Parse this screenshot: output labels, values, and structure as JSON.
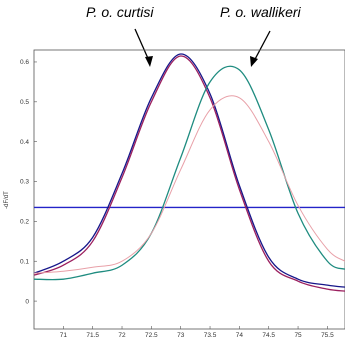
{
  "chart_data": {
    "type": "line",
    "annotations": [
      {
        "text": "P. o. curtisi"
      },
      {
        "text": "P. o. wallikeri"
      }
    ],
    "ylabel": "-dF/dT",
    "xlim": [
      70.5,
      75.8
    ],
    "ylim": [
      -0.07,
      0.63
    ],
    "x_ticks": [
      71,
      71.5,
      72,
      72.5,
      73,
      73.5,
      74,
      74.5,
      75,
      75.5
    ],
    "x_tick_labels": [
      "71",
      "71.5",
      "72",
      "72.5",
      "73",
      "73.5",
      "74",
      "74.5",
      "75",
      "75.5"
    ],
    "y_ticks": [
      0,
      0.1,
      0.2,
      0.3,
      0.4,
      0.5,
      0.6
    ],
    "y_tick_labels": [
      "0",
      "0.1",
      "0.2",
      "0.3",
      "0.4",
      "0.5",
      "0.6"
    ],
    "threshold": {
      "y": 0.235,
      "color": "#2323c8"
    },
    "series": [
      {
        "color": "#16168a",
        "x": [
          70.5,
          71.0,
          71.5,
          72.0,
          72.5,
          73.0,
          73.5,
          74.0,
          74.5,
          75.0,
          75.5,
          75.8
        ],
        "y": [
          0.07,
          0.1,
          0.16,
          0.32,
          0.51,
          0.62,
          0.52,
          0.29,
          0.11,
          0.055,
          0.04,
          0.035
        ]
      },
      {
        "color": "#9b1f5e",
        "x": [
          70.5,
          71.0,
          71.5,
          72.0,
          72.5,
          73.0,
          73.5,
          74.0,
          74.5,
          75.0,
          75.5,
          75.8
        ],
        "y": [
          0.065,
          0.09,
          0.15,
          0.31,
          0.5,
          0.615,
          0.51,
          0.28,
          0.1,
          0.05,
          0.03,
          0.025
        ]
      },
      {
        "color": "#1f8c80",
        "x": [
          70.5,
          71.0,
          71.5,
          72.0,
          72.5,
          73.0,
          73.5,
          74.0,
          74.5,
          75.0,
          75.5,
          75.8
        ],
        "y": [
          0.055,
          0.055,
          0.07,
          0.09,
          0.17,
          0.36,
          0.55,
          0.58,
          0.43,
          0.22,
          0.1,
          0.08
        ]
      },
      {
        "color": "#e8a0a8",
        "x": [
          70.5,
          71.0,
          71.5,
          72.0,
          72.5,
          73.0,
          73.5,
          74.0,
          74.5,
          75.0,
          75.5,
          75.8
        ],
        "y": [
          0.07,
          0.075,
          0.085,
          0.1,
          0.17,
          0.33,
          0.48,
          0.51,
          0.4,
          0.24,
          0.13,
          0.1
        ]
      }
    ],
    "grid": false
  },
  "colors": {
    "frame": "#555555",
    "arrow": "#000000",
    "background": "#ffffff"
  }
}
